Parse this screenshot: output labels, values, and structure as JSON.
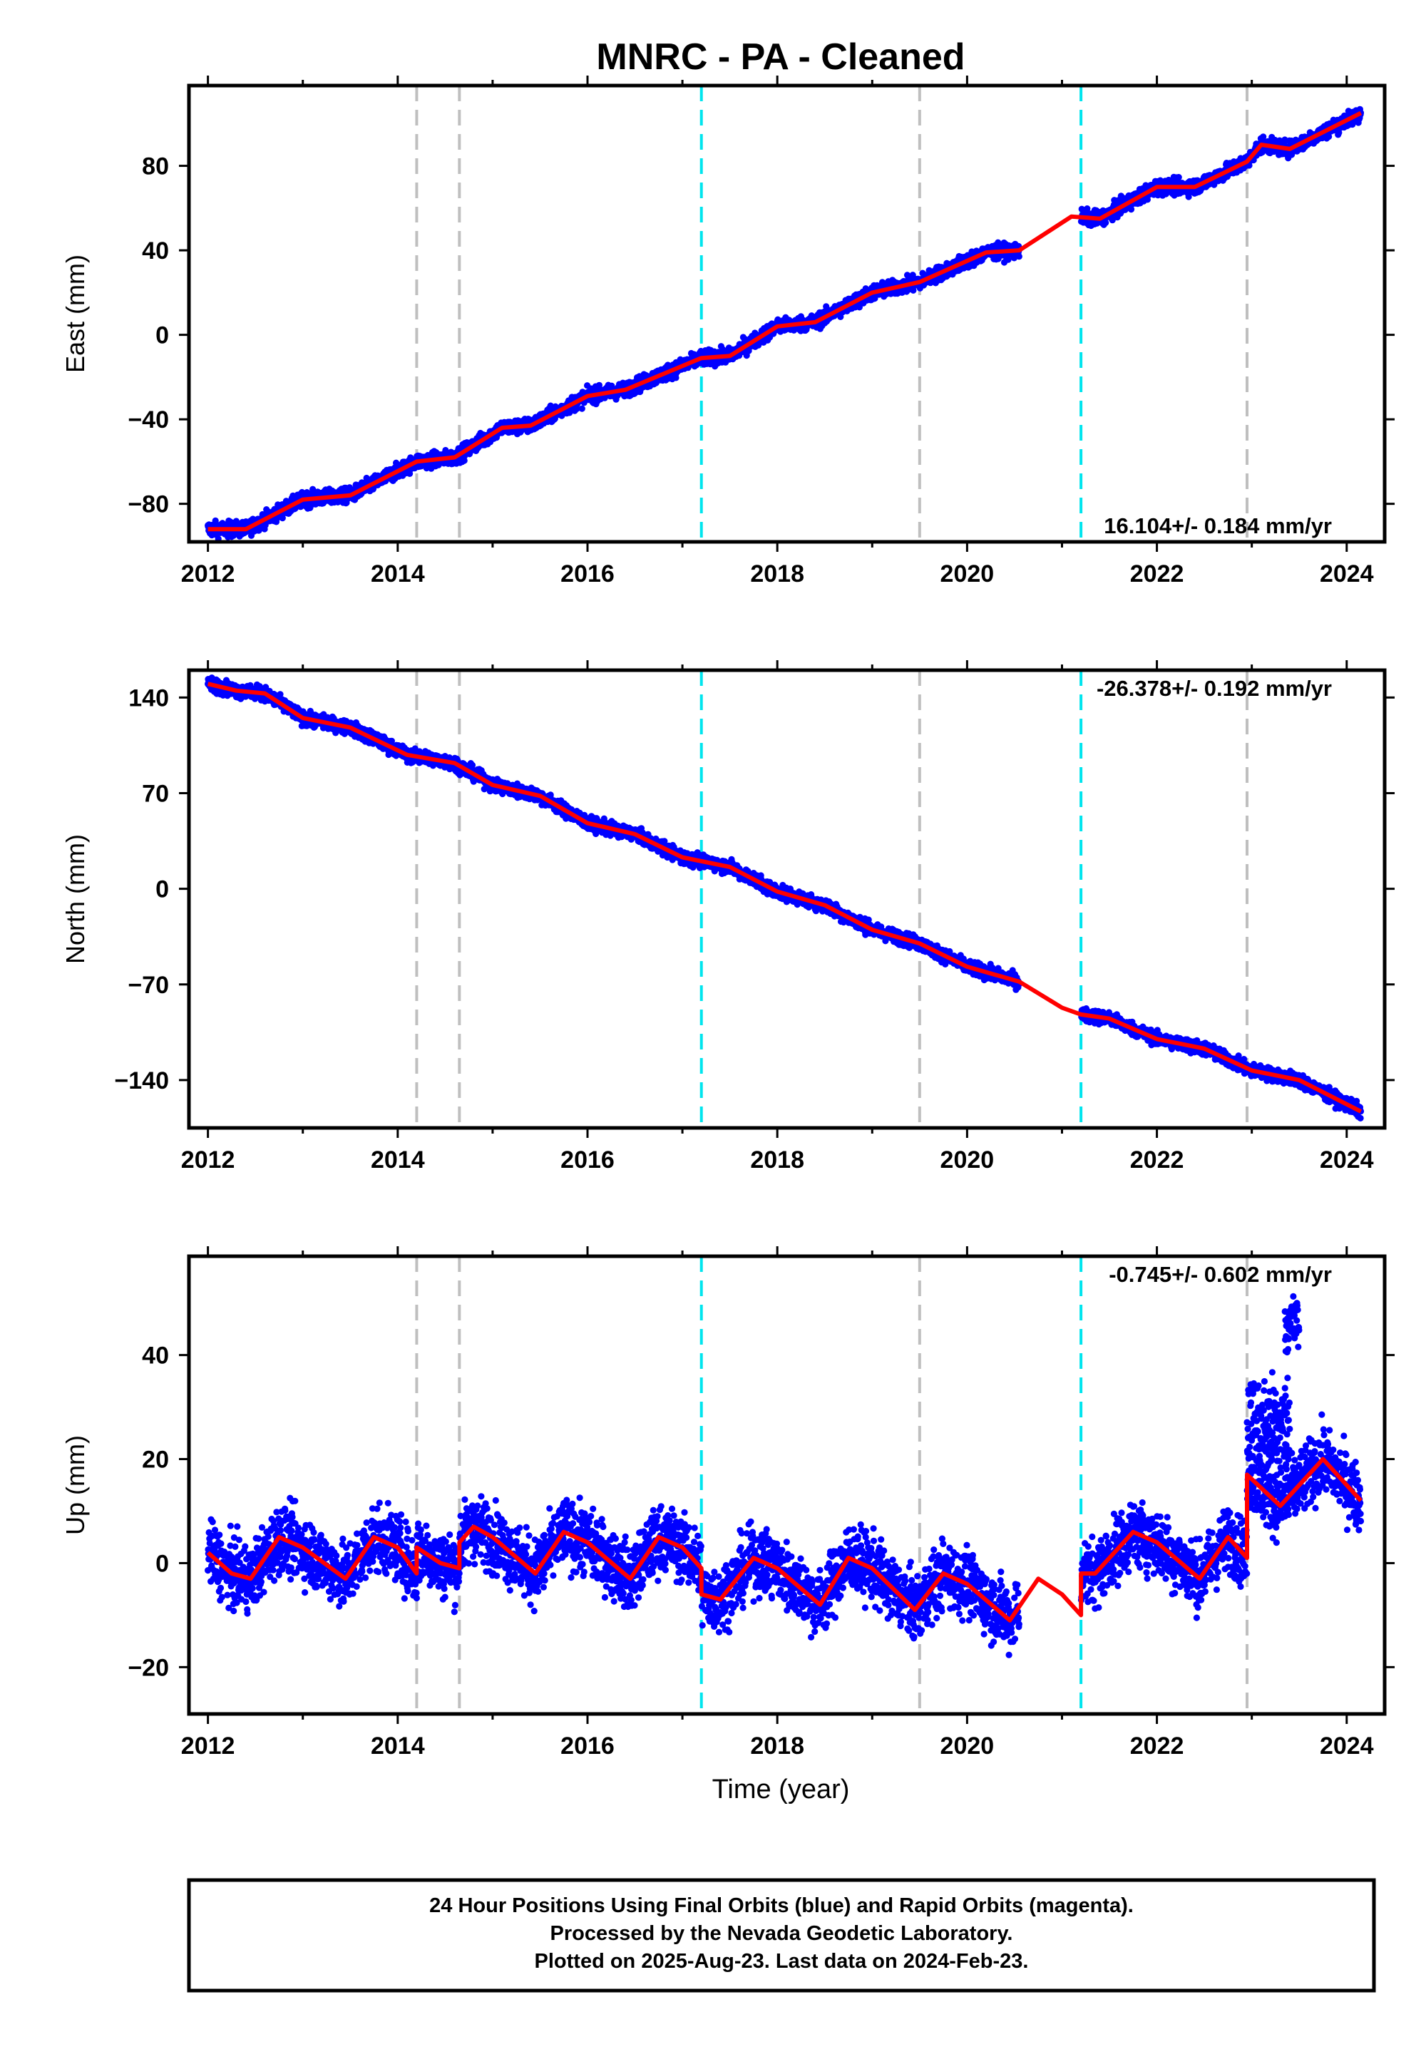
{
  "title": "MNRC  - PA - Cleaned",
  "xlabel": "Time (year)",
  "colors": {
    "data": "#0000ff",
    "model": "#ff0000",
    "equipment": "#bfbfbf",
    "earthquake": "#00e5ee"
  },
  "footer": [
    "24 Hour Positions Using Final Orbits (blue) and Rapid Orbits (magenta).",
    "Processed by the Nevada Geodetic Laboratory.",
    "Plotted on 2025-Aug-23. Last data on 2024-Feb-23."
  ],
  "chart_data": [
    {
      "type": "scatter",
      "ylabel": "East (mm)",
      "rate_label": "16.104+/- 0.184 mm/yr",
      "xlim": [
        2011.8,
        2024.4
      ],
      "ylim": [
        -98,
        118
      ],
      "xticks": [
        2012,
        2014,
        2016,
        2018,
        2020,
        2022,
        2024
      ],
      "yticks": [
        -80,
        -40,
        0,
        40,
        80
      ],
      "vlines_gray": [
        2014.2,
        2014.65,
        2019.5,
        2022.95
      ],
      "vlines_cyan": [
        2017.2,
        2021.2
      ],
      "gaps": [
        [
          2020.55,
          2021.2
        ]
      ],
      "model": [
        [
          2012.0,
          -92
        ],
        [
          2012.4,
          -92
        ],
        [
          2013.0,
          -78
        ],
        [
          2013.5,
          -76
        ],
        [
          2014.2,
          -60
        ],
        [
          2014.6,
          -58
        ],
        [
          2015.1,
          -44
        ],
        [
          2015.4,
          -43
        ],
        [
          2016.0,
          -29
        ],
        [
          2016.4,
          -26
        ],
        [
          2017.2,
          -11
        ],
        [
          2017.5,
          -10
        ],
        [
          2018.0,
          4
        ],
        [
          2018.4,
          6
        ],
        [
          2019.0,
          20
        ],
        [
          2019.5,
          25
        ],
        [
          2020.2,
          39
        ],
        [
          2020.55,
          40
        ],
        [
          2021.1,
          56
        ],
        [
          2021.4,
          55
        ],
        [
          2022.0,
          70
        ],
        [
          2022.4,
          70
        ],
        [
          2022.95,
          82
        ],
        [
          2023.1,
          90
        ],
        [
          2023.4,
          88
        ],
        [
          2024.15,
          105
        ]
      ],
      "scatter": 2.5
    },
    {
      "type": "scatter",
      "ylabel": "North (mm)",
      "rate_label": "-26.378+/- 0.192 mm/yr",
      "xlim": [
        2011.8,
        2024.4
      ],
      "ylim": [
        -175,
        160
      ],
      "xticks": [
        2012,
        2014,
        2016,
        2018,
        2020,
        2022,
        2024
      ],
      "yticks": [
        -140,
        -70,
        0,
        70,
        140
      ],
      "vlines_gray": [
        2014.2,
        2014.65,
        2019.5,
        2022.95
      ],
      "vlines_cyan": [
        2017.2,
        2021.2
      ],
      "gaps": [
        [
          2020.55,
          2021.2
        ]
      ],
      "model": [
        [
          2012.0,
          150
        ],
        [
          2012.3,
          145
        ],
        [
          2012.6,
          143
        ],
        [
          2013.0,
          125
        ],
        [
          2013.5,
          118
        ],
        [
          2014.1,
          98
        ],
        [
          2014.6,
          92
        ],
        [
          2015.0,
          76
        ],
        [
          2015.5,
          68
        ],
        [
          2016.0,
          48
        ],
        [
          2016.5,
          40
        ],
        [
          2017.0,
          23
        ],
        [
          2017.5,
          16
        ],
        [
          2018.0,
          -2
        ],
        [
          2018.5,
          -12
        ],
        [
          2019.0,
          -30
        ],
        [
          2019.5,
          -40
        ],
        [
          2020.0,
          -57
        ],
        [
          2020.55,
          -68
        ],
        [
          2021.0,
          -87
        ],
        [
          2021.2,
          -92
        ],
        [
          2021.5,
          -95
        ],
        [
          2022.0,
          -110
        ],
        [
          2022.5,
          -117
        ],
        [
          2023.0,
          -133
        ],
        [
          2023.5,
          -140
        ],
        [
          2024.15,
          -163
        ]
      ],
      "scatter": 3.5
    },
    {
      "type": "scatter",
      "ylabel": "Up (mm)",
      "rate_label": "-0.745+/- 0.602 mm/yr",
      "xlim": [
        2011.8,
        2024.4
      ],
      "ylim": [
        -29,
        59
      ],
      "xticks": [
        2012,
        2014,
        2016,
        2018,
        2020,
        2022,
        2024
      ],
      "yticks": [
        -20,
        0,
        20,
        40
      ],
      "vlines_gray": [
        2014.2,
        2014.65,
        2019.5,
        2022.95
      ],
      "vlines_cyan": [
        2017.2,
        2021.2
      ],
      "gaps": [
        [
          2020.55,
          2021.2
        ]
      ],
      "model": [
        [
          2012.0,
          2
        ],
        [
          2012.25,
          -2
        ],
        [
          2012.45,
          -3
        ],
        [
          2012.75,
          5
        ],
        [
          2013.0,
          3
        ],
        [
          2013.45,
          -3
        ],
        [
          2013.75,
          5
        ],
        [
          2014.0,
          3
        ],
        [
          2014.2,
          -2
        ],
        [
          2014.2,
          3
        ],
        [
          2014.45,
          0
        ],
        [
          2014.65,
          -1
        ],
        [
          2014.65,
          4
        ],
        [
          2014.8,
          7
        ],
        [
          2015.0,
          5
        ],
        [
          2015.45,
          -2
        ],
        [
          2015.75,
          6
        ],
        [
          2016.0,
          4
        ],
        [
          2016.45,
          -3
        ],
        [
          2016.75,
          5
        ],
        [
          2017.0,
          3
        ],
        [
          2017.2,
          -1
        ],
        [
          2017.2,
          -6
        ],
        [
          2017.4,
          -7
        ],
        [
          2017.75,
          1
        ],
        [
          2018.0,
          -1
        ],
        [
          2018.45,
          -8
        ],
        [
          2018.75,
          1
        ],
        [
          2019.0,
          -1
        ],
        [
          2019.45,
          -9
        ],
        [
          2019.75,
          -2
        ],
        [
          2020.0,
          -4
        ],
        [
          2020.45,
          -11
        ],
        [
          2020.75,
          -3
        ],
        [
          2021.0,
          -6
        ],
        [
          2021.2,
          -10
        ],
        [
          2021.2,
          -2
        ],
        [
          2021.35,
          -2
        ],
        [
          2021.75,
          6
        ],
        [
          2022.0,
          4
        ],
        [
          2022.45,
          -3
        ],
        [
          2022.75,
          5
        ],
        [
          2022.95,
          1
        ],
        [
          2022.95,
          17
        ],
        [
          2023.3,
          11
        ],
        [
          2023.75,
          20
        ],
        [
          2024.15,
          12
        ]
      ],
      "extra_scatter": [
        [
          2022.95,
          2023.4,
          26,
          14
        ],
        [
          2023.35,
          2023.5,
          46,
          8
        ]
      ],
      "scatter": 4.5
    }
  ]
}
